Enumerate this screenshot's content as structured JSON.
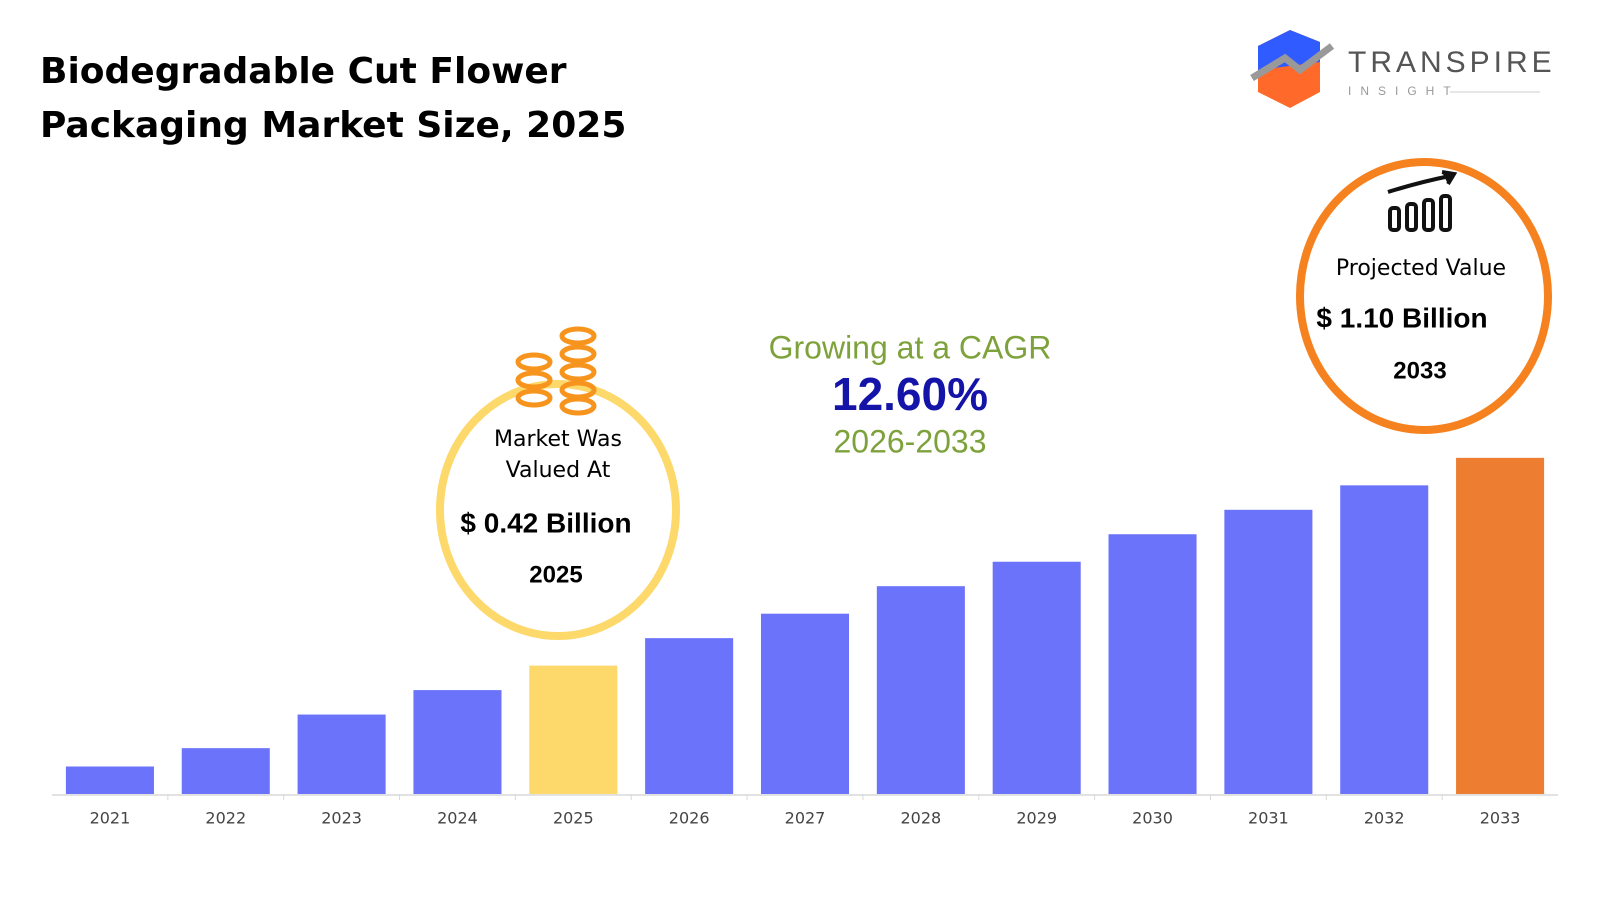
{
  "chart_data": {
    "type": "bar",
    "title": "Biodegradable Cut Flower Packaging Market Size, 2025",
    "brand": {
      "name": "TRANSPIRE",
      "tagline": "INSIGHT"
    },
    "categories": [
      "2021",
      "2022",
      "2023",
      "2024",
      "2025",
      "2026",
      "2027",
      "2028",
      "2029",
      "2030",
      "2031",
      "2032",
      "2033"
    ],
    "values": [
      0.09,
      0.15,
      0.26,
      0.34,
      0.42,
      0.51,
      0.59,
      0.68,
      0.76,
      0.85,
      0.93,
      1.01,
      1.1
    ],
    "colors": [
      "#6b73fb",
      "#6b73fb",
      "#6b73fb",
      "#6b73fb",
      "#fdd86b",
      "#6b73fb",
      "#6b73fb",
      "#6b73fb",
      "#6b73fb",
      "#6b73fb",
      "#6b73fb",
      "#6b73fb",
      "#ed7d31"
    ],
    "ylim": [
      0,
      1.25
    ],
    "start_note": {
      "lines": [
        "Market Was",
        "Valued At"
      ],
      "value": "$ 0.42 Billion",
      "year": "2025"
    },
    "cagr_note": {
      "lead": "Growing at a CAGR",
      "rate": "12.60%",
      "period": "2026-2033"
    },
    "end_note": {
      "lead": "Projected Value",
      "value": "$ 1.10 Billion",
      "year": "2033"
    }
  }
}
